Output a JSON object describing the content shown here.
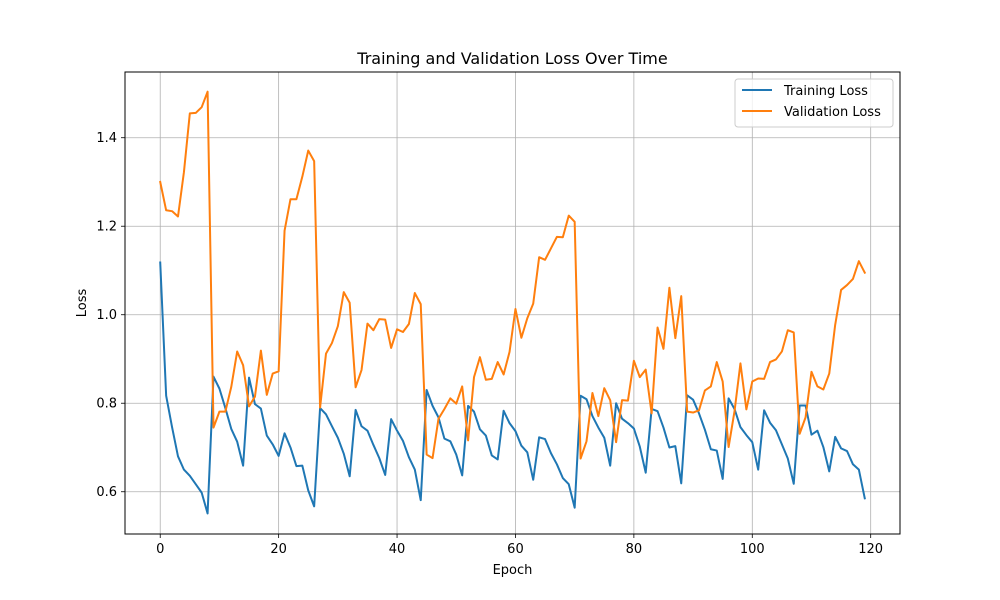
{
  "chart_data": {
    "type": "line",
    "title": "Training and Validation Loss Over Time",
    "xlabel": "Epoch",
    "ylabel": "Loss",
    "xlim": [
      -5.95,
      124.95
    ],
    "ylim": [
      0.5045,
      1.5485
    ],
    "xticks": [
      0,
      20,
      40,
      60,
      80,
      100,
      120
    ],
    "xtick_labels": [
      "0",
      "20",
      "40",
      "60",
      "80",
      "100",
      "120"
    ],
    "yticks": [
      0.6,
      0.8,
      1.0,
      1.2,
      1.4
    ],
    "ytick_labels": [
      "0.6",
      "0.8",
      "1.0",
      "1.2",
      "1.4"
    ],
    "grid": true,
    "legend_position": "top-right",
    "series": [
      {
        "name": "Training Loss",
        "color": "#1f77b4",
        "values": [
          1.118,
          0.817,
          0.746,
          0.68,
          0.65,
          0.636,
          0.617,
          0.598,
          0.551,
          0.86,
          0.833,
          0.789,
          0.742,
          0.713,
          0.659,
          0.858,
          0.798,
          0.788,
          0.727,
          0.707,
          0.681,
          0.732,
          0.7,
          0.658,
          0.659,
          0.603,
          0.567,
          0.789,
          0.775,
          0.748,
          0.722,
          0.686,
          0.635,
          0.785,
          0.748,
          0.738,
          0.706,
          0.676,
          0.638,
          0.764,
          0.738,
          0.715,
          0.678,
          0.65,
          0.581,
          0.83,
          0.794,
          0.768,
          0.72,
          0.714,
          0.684,
          0.637,
          0.794,
          0.781,
          0.741,
          0.727,
          0.682,
          0.673,
          0.783,
          0.755,
          0.737,
          0.704,
          0.689,
          0.627,
          0.723,
          0.719,
          0.687,
          0.662,
          0.631,
          0.617,
          0.564,
          0.817,
          0.809,
          0.771,
          0.745,
          0.722,
          0.659,
          0.8,
          0.765,
          0.755,
          0.743,
          0.702,
          0.643,
          0.787,
          0.782,
          0.745,
          0.7,
          0.703,
          0.619,
          0.818,
          0.808,
          0.777,
          0.74,
          0.696,
          0.693,
          0.629,
          0.811,
          0.787,
          0.746,
          0.728,
          0.712,
          0.65,
          0.784,
          0.756,
          0.739,
          0.707,
          0.675,
          0.618,
          0.795,
          0.795,
          0.729,
          0.738,
          0.701,
          0.646,
          0.724,
          0.698,
          0.692,
          0.662,
          0.65,
          0.585
        ]
      },
      {
        "name": "Validation Loss",
        "color": "#ff7f0e",
        "values": [
          1.3,
          1.236,
          1.234,
          1.222,
          1.322,
          1.455,
          1.456,
          1.469,
          1.504,
          0.745,
          0.781,
          0.781,
          0.837,
          0.917,
          0.886,
          0.793,
          0.815,
          0.919,
          0.819,
          0.867,
          0.872,
          1.19,
          1.261,
          1.261,
          1.312,
          1.371,
          1.347,
          0.79,
          0.912,
          0.936,
          0.974,
          1.051,
          1.027,
          0.836,
          0.875,
          0.98,
          0.965,
          0.99,
          0.989,
          0.925,
          0.967,
          0.961,
          0.979,
          1.049,
          1.024,
          0.684,
          0.676,
          0.765,
          0.787,
          0.811,
          0.799,
          0.838,
          0.716,
          0.859,
          0.904,
          0.853,
          0.855,
          0.893,
          0.865,
          0.916,
          1.013,
          0.948,
          0.992,
          1.025,
          1.13,
          1.124,
          1.15,
          1.176,
          1.175,
          1.224,
          1.21,
          0.675,
          0.714,
          0.823,
          0.771,
          0.834,
          0.807,
          0.712,
          0.807,
          0.806,
          0.896,
          0.859,
          0.876,
          0.777,
          0.971,
          0.923,
          1.061,
          0.947,
          1.042,
          0.781,
          0.779,
          0.784,
          0.829,
          0.838,
          0.893,
          0.849,
          0.701,
          0.782,
          0.89,
          0.786,
          0.849,
          0.856,
          0.855,
          0.893,
          0.899,
          0.917,
          0.965,
          0.96,
          0.731,
          0.768,
          0.871,
          0.838,
          0.831,
          0.867,
          0.977,
          1.056,
          1.067,
          1.081,
          1.121,
          1.095
        ]
      }
    ]
  }
}
